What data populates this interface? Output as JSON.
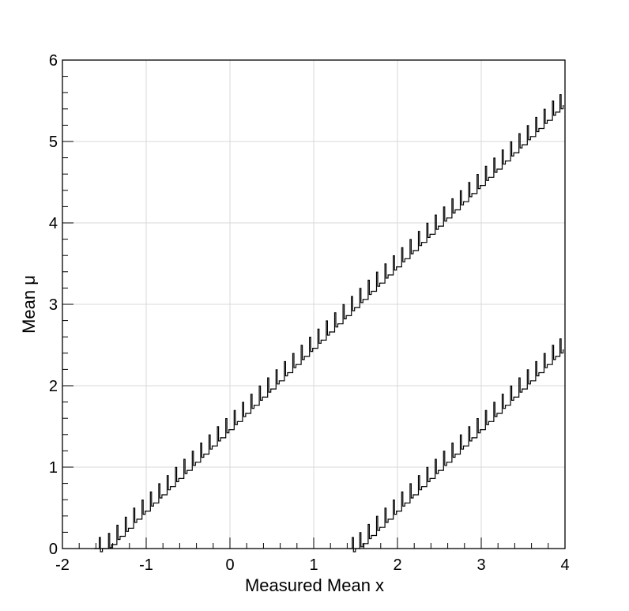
{
  "chart_data": {
    "type": "line",
    "title": "",
    "xlabel": "Measured Mean x",
    "ylabel": "Mean  μ",
    "xlim": [
      -2,
      4
    ],
    "ylim": [
      0,
      6
    ],
    "x_ticks": [
      "-2",
      "-1",
      "0",
      "1",
      "2",
      "3",
      "4"
    ],
    "y_ticks": [
      "0",
      "1",
      "2",
      "3",
      "4",
      "5",
      "6"
    ],
    "grid": true,
    "legend": "none",
    "colors": {
      "line": "#000000",
      "grid": "#d9d9d9",
      "frame": "#000000",
      "background": "#ffffff"
    },
    "series": [
      {
        "x": [
          -1.62,
          -1.5,
          -1.4,
          -1.3,
          -1.2,
          -1.1,
          -1.0,
          -0.9,
          -0.8,
          -0.7,
          -0.6,
          -0.5,
          -0.4,
          -0.3,
          -0.2,
          -0.1,
          0.0,
          0.1,
          0.2,
          0.3,
          0.4,
          0.5,
          0.6,
          0.7,
          0.8,
          0.9,
          1.0,
          1.1,
          1.2,
          1.3,
          1.4,
          1.5,
          1.6,
          1.7,
          1.8,
          1.9,
          2.0,
          2.1,
          2.2,
          2.3,
          2.4,
          2.5,
          2.6,
          2.7,
          2.8,
          2.9,
          3.0,
          3.1,
          3.2,
          3.3,
          3.4,
          3.5,
          3.6,
          3.7,
          3.8,
          3.9,
          3.98
        ],
        "y": [
          0.0,
          0.0,
          0.05,
          0.15,
          0.25,
          0.36,
          0.46,
          0.56,
          0.66,
          0.76,
          0.86,
          0.96,
          1.06,
          1.16,
          1.26,
          1.36,
          1.46,
          1.56,
          1.66,
          1.76,
          1.86,
          1.96,
          2.06,
          2.16,
          2.26,
          2.36,
          2.46,
          2.56,
          2.66,
          2.76,
          2.86,
          2.96,
          3.06,
          3.16,
          3.26,
          3.36,
          3.46,
          3.56,
          3.66,
          3.76,
          3.86,
          3.96,
          4.06,
          4.16,
          4.26,
          4.36,
          4.46,
          4.56,
          4.66,
          4.76,
          4.86,
          4.96,
          5.06,
          5.16,
          5.26,
          5.36,
          5.44
        ]
      },
      {
        "x": [
          1.42,
          1.5,
          1.6,
          1.7,
          1.8,
          1.9,
          2.0,
          2.1,
          2.2,
          2.3,
          2.4,
          2.5,
          2.6,
          2.7,
          2.8,
          2.9,
          3.0,
          3.1,
          3.2,
          3.3,
          3.4,
          3.5,
          3.6,
          3.7,
          3.8,
          3.9,
          3.98
        ],
        "y": [
          0.0,
          0.0,
          0.06,
          0.16,
          0.26,
          0.36,
          0.46,
          0.56,
          0.66,
          0.76,
          0.86,
          0.96,
          1.06,
          1.16,
          1.26,
          1.36,
          1.46,
          1.56,
          1.66,
          1.76,
          1.86,
          1.96,
          2.06,
          2.16,
          2.26,
          2.36,
          2.44
        ]
      }
    ]
  }
}
